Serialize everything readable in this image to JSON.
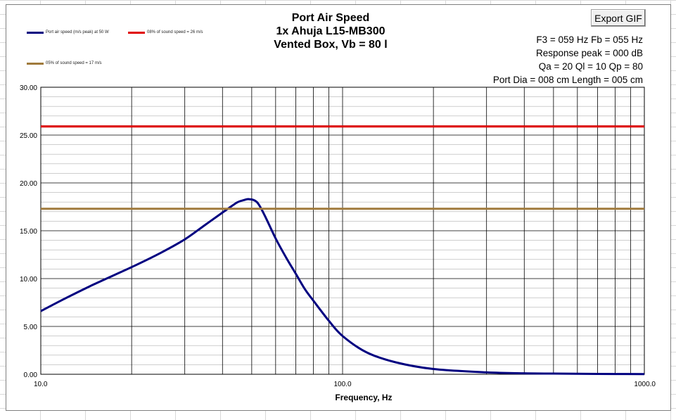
{
  "window": {
    "export_button_label": "Export GIF"
  },
  "params": {
    "lines": [
      "F3 = 059 Hz  Fb = 055 Hz",
      "Response peak = 000 dB",
      "Qa = 20  Ql = 10  Qp = 80",
      "Port Dia = 008 cm  Length = 005 cm"
    ]
  },
  "colors": {
    "speed": "#000080",
    "limit8": "#e00000",
    "limit5": "#a07a3c",
    "grid_major": "#000000",
    "grid_minor": "#b0b0b0"
  },
  "chart_data": {
    "type": "line",
    "title_lines": [
      "Port Air Speed",
      "1x Ahuja L15-MB300",
      "Vented Box, Vb = 80 l"
    ],
    "xlabel": "Frequency, Hz",
    "ylabel": "",
    "x_scale": "log",
    "xlim": [
      10,
      1000
    ],
    "ylim": [
      0,
      30
    ],
    "x_ticks": [
      10,
      100,
      1000
    ],
    "x_tick_labels": [
      "10.0",
      "100.0",
      "1000.0"
    ],
    "y_ticks": [
      0,
      5,
      10,
      15,
      20,
      25,
      30
    ],
    "y_tick_labels": [
      "0.00",
      "5.00",
      "10.00",
      "15.00",
      "20.00",
      "25.00",
      "30.00"
    ],
    "grid": true,
    "legend_position": "top-left",
    "series": [
      {
        "name": "Port air speed (m/s peak) at 50 W",
        "color_key": "speed",
        "x": [
          10,
          12,
          15,
          20,
          25,
          30,
          35,
          40,
          43,
          45,
          47,
          49,
          52,
          55,
          60,
          65,
          70,
          75,
          80,
          90,
          100,
          120,
          150,
          200,
          300,
          400,
          500,
          700,
          1000
        ],
        "y": [
          6.6,
          7.9,
          9.4,
          11.2,
          12.7,
          14.1,
          15.6,
          16.9,
          17.6,
          18.0,
          18.2,
          18.3,
          18.0,
          16.7,
          14.2,
          12.2,
          10.5,
          8.9,
          7.7,
          5.6,
          4.0,
          2.3,
          1.25,
          0.55,
          0.2,
          0.1,
          0.07,
          0.04,
          0.02
        ]
      },
      {
        "name": "08% of sound speed = 26 m/s",
        "color_key": "limit8",
        "x": [
          10,
          1000
        ],
        "y": [
          25.9,
          25.9
        ]
      },
      {
        "name": "05% of sound speed = 17 m/s",
        "color_key": "limit5",
        "x": [
          10,
          1000
        ],
        "y": [
          17.3,
          17.3
        ]
      }
    ]
  }
}
